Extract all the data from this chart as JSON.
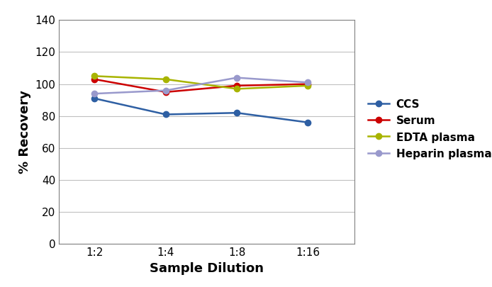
{
  "xlabel": "Sample Dilution",
  "ylabel": "% Recovery",
  "x_labels": [
    "1:2",
    "1:4",
    "1:8",
    "1:16"
  ],
  "x_positions": [
    1,
    2,
    3,
    4
  ],
  "series": [
    {
      "label": "CCS",
      "values": [
        91,
        81,
        82,
        76
      ],
      "color": "#2E5FA3",
      "marker": "o",
      "linewidth": 1.8,
      "markersize": 6
    },
    {
      "label": "Serum",
      "values": [
        103,
        95,
        99,
        100
      ],
      "color": "#CC0000",
      "marker": "o",
      "linewidth": 1.8,
      "markersize": 6
    },
    {
      "label": "EDTA plasma",
      "values": [
        105,
        103,
        97,
        99
      ],
      "color": "#A8B400",
      "marker": "o",
      "linewidth": 1.8,
      "markersize": 6
    },
    {
      "label": "Heparin plasma",
      "values": [
        94,
        96,
        104,
        101
      ],
      "color": "#9999CC",
      "marker": "o",
      "linewidth": 1.8,
      "markersize": 6
    }
  ],
  "ylim": [
    0,
    140
  ],
  "yticks": [
    0,
    20,
    40,
    60,
    80,
    100,
    120,
    140
  ],
  "grid_color": "#C0C0C0",
  "background_color": "#FFFFFF",
  "legend_fontsize": 11,
  "axis_label_fontsize": 13,
  "tick_fontsize": 11
}
